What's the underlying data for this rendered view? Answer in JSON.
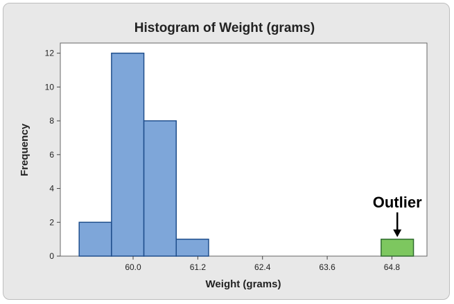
{
  "chart_data": {
    "type": "bar",
    "title": "Histogram of Weight (grams)",
    "xlabel": "Weight (grams)",
    "ylabel": "Frequency",
    "xlim": [
      58.65,
      65.45
    ],
    "ylim": [
      0,
      12.6
    ],
    "x_ticks": [
      "60.0",
      "61.2",
      "62.4",
      "63.6",
      "64.8"
    ],
    "y_ticks": [
      "0",
      "2",
      "4",
      "6",
      "8",
      "10",
      "12"
    ],
    "bins": [
      {
        "start": 59.0,
        "end": 59.6,
        "count": 2,
        "highlight": false
      },
      {
        "start": 59.6,
        "end": 60.2,
        "count": 12,
        "highlight": false
      },
      {
        "start": 60.2,
        "end": 60.8,
        "count": 8,
        "highlight": false
      },
      {
        "start": 60.8,
        "end": 61.4,
        "count": 1,
        "highlight": false
      },
      {
        "start": 64.6,
        "end": 65.2,
        "count": 1,
        "highlight": true
      }
    ],
    "bar_color": "#7ea6d9",
    "bar_edge_color": "#1f4e8c",
    "highlight_color": "#7dc75f",
    "highlight_edge_color": "#2f6b2f",
    "grid": false,
    "annotation": {
      "text": "Outlier",
      "x": 64.9,
      "y": 1
    }
  }
}
